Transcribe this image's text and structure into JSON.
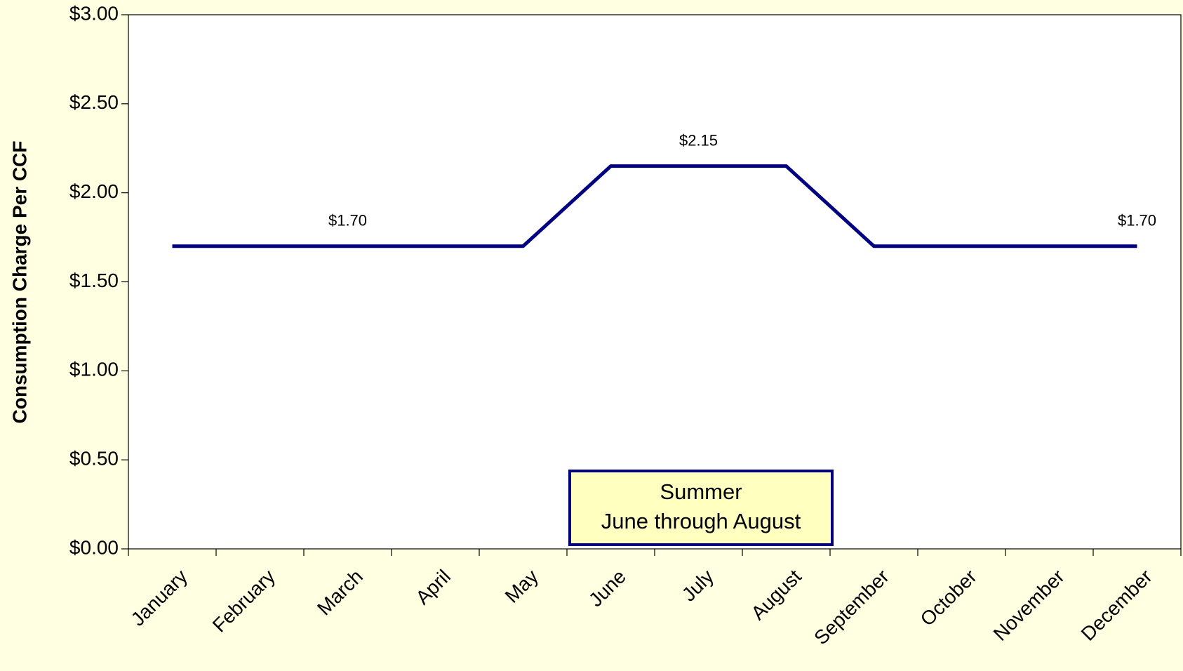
{
  "chart_data": {
    "type": "line",
    "y_label": "Consumption Charge Per CCF",
    "categories": [
      "January",
      "February",
      "March",
      "April",
      "May",
      "June",
      "July",
      "August",
      "September",
      "October",
      "November",
      "December"
    ],
    "series": [
      {
        "name": "Consumption Charge",
        "color": "#000080",
        "values": [
          1.7,
          1.7,
          1.7,
          1.7,
          1.7,
          2.15,
          2.15,
          2.15,
          1.7,
          1.7,
          1.7,
          1.7
        ],
        "value_labels": [
          null,
          null,
          "$1.70",
          null,
          null,
          null,
          "$2.15",
          null,
          null,
          null,
          null,
          "$1.70"
        ]
      }
    ],
    "ylim": [
      0,
      3
    ],
    "yticks": [
      {
        "value": 0,
        "label": "$0.00"
      },
      {
        "value": 0.5,
        "label": "$0.50"
      },
      {
        "value": 1,
        "label": "$1.00"
      },
      {
        "value": 1.5,
        "label": "$1.50"
      },
      {
        "value": 2,
        "label": "$2.00"
      },
      {
        "value": 2.5,
        "label": "$2.50"
      },
      {
        "value": 3,
        "label": "$3.00"
      }
    ],
    "annotation": [
      "Summer",
      "June through August"
    ]
  }
}
